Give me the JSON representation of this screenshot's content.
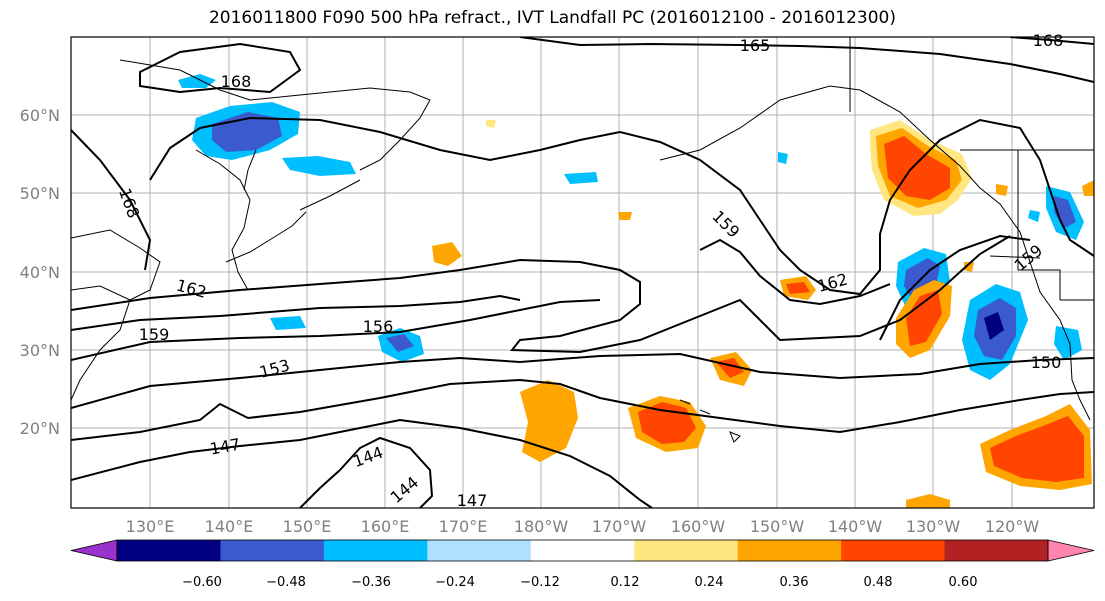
{
  "title": "2016011800 F090 500 hPa refract., IVT Landfall PC (2016012100 - 2016012300)",
  "lat_labels": [
    "60°N",
    "50°N",
    "40°N",
    "30°N",
    "20°N"
  ],
  "lon_labels": [
    "130°E",
    "140°E",
    "150°E",
    "160°E",
    "170°E",
    "180°W",
    "170°W",
    "160°W",
    "150°W",
    "140°W",
    "130°W",
    "120°W"
  ],
  "contour_labels": [
    "165",
    "168",
    "168",
    "168",
    "159",
    "162",
    "162",
    "159",
    "156",
    "159",
    "150",
    "153",
    "147",
    "144",
    "144",
    "147"
  ],
  "colorbar": {
    "ticks": [
      "−0.60",
      "−0.48",
      "−0.36",
      "−0.24",
      "−0.12",
      "0.12",
      "0.24",
      "0.36",
      "0.48",
      "0.60"
    ],
    "colors": [
      "#9932cc",
      "#000080",
      "#3a5acd",
      "#00bfff",
      "#b0e0ff",
      "#ffffff",
      "#ffe680",
      "#ffa500",
      "#ff4500",
      "#b22222",
      "#ff85b0"
    ]
  }
}
